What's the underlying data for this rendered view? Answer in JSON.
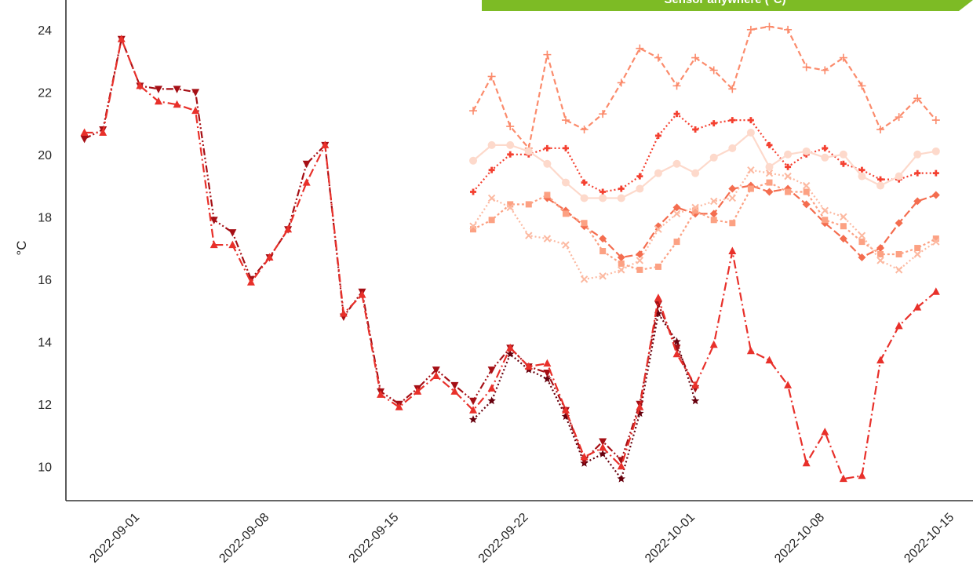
{
  "banner": {
    "text": "Sensor anywhere (°C)",
    "color": "#7dbb25"
  },
  "chart_data": {
    "type": "line",
    "title": "",
    "xlabel": "",
    "ylabel": "°C",
    "grid": false,
    "x_axis": {
      "type": "date",
      "range": [
        "2022-08-28",
        "2022-10-16"
      ],
      "ticks": [
        "2022-09-01",
        "2022-09-08",
        "2022-09-15",
        "2022-09-22",
        "2022-10-01",
        "2022-10-08",
        "2022-10-15"
      ]
    },
    "y_axis": {
      "range": [
        8.9,
        24.7
      ],
      "ticks": [
        10,
        12,
        14,
        16,
        18,
        20,
        22,
        24
      ]
    },
    "series": [
      {
        "color": "#67000d",
        "dash": "2,3",
        "marker": "star",
        "points": [
          [
            "2022-09-19",
            11.5
          ],
          [
            "2022-09-20",
            12.1
          ],
          [
            "2022-09-21",
            13.6
          ],
          [
            "2022-09-22",
            13.1
          ],
          [
            "2022-09-23",
            12.8
          ],
          [
            "2022-09-24",
            11.6
          ],
          [
            "2022-09-25",
            10.1
          ],
          [
            "2022-09-26",
            10.4
          ],
          [
            "2022-09-27",
            9.6
          ],
          [
            "2022-09-28",
            11.7
          ],
          [
            "2022-09-29",
            14.9
          ],
          [
            "2022-09-30",
            14.0
          ],
          [
            "2022-10-01",
            12.1
          ]
        ]
      },
      {
        "color": "#a50f15",
        "dash": "9,3,2,3,2,3",
        "marker": "triangle-down",
        "points": [
          [
            "2022-08-29",
            20.5
          ],
          [
            "2022-08-30",
            20.8
          ],
          [
            "2022-08-31",
            23.7
          ],
          [
            "2022-09-01",
            22.2
          ],
          [
            "2022-09-02",
            22.1
          ],
          [
            "2022-09-03",
            22.1
          ],
          [
            "2022-09-04",
            22.0
          ],
          [
            "2022-09-05",
            17.9
          ],
          [
            "2022-09-06",
            17.5
          ],
          [
            "2022-09-07",
            16.0
          ],
          [
            "2022-09-08",
            16.7
          ],
          [
            "2022-09-09",
            17.6
          ],
          [
            "2022-09-10",
            19.7
          ],
          [
            "2022-09-11",
            20.3
          ],
          [
            "2022-09-12",
            14.8
          ],
          [
            "2022-09-13",
            15.6
          ],
          [
            "2022-09-14",
            12.4
          ],
          [
            "2022-09-15",
            12.0
          ],
          [
            "2022-09-16",
            12.5
          ],
          [
            "2022-09-17",
            13.1
          ],
          [
            "2022-09-18",
            12.6
          ],
          [
            "2022-09-19",
            12.1
          ],
          [
            "2022-09-20",
            13.1
          ],
          [
            "2022-09-21",
            13.8
          ],
          [
            "2022-09-22",
            13.2
          ],
          [
            "2022-09-23",
            13.0
          ],
          [
            "2022-09-24",
            11.8
          ],
          [
            "2022-09-25",
            10.2
          ],
          [
            "2022-09-26",
            10.8
          ],
          [
            "2022-09-27",
            10.2
          ],
          [
            "2022-09-28",
            12.0
          ],
          [
            "2022-09-29",
            15.2
          ],
          [
            "2022-09-30",
            13.8
          ],
          [
            "2022-10-01",
            12.5
          ]
        ]
      },
      {
        "color": "#e8302a",
        "dash": "11,4,2,4",
        "marker": "triangle-up",
        "points": [
          [
            "2022-08-29",
            20.7
          ],
          [
            "2022-08-30",
            20.7
          ],
          [
            "2022-08-31",
            23.7
          ],
          [
            "2022-09-01",
            22.2
          ],
          [
            "2022-09-02",
            21.7
          ],
          [
            "2022-09-03",
            21.6
          ],
          [
            "2022-09-04",
            21.4
          ],
          [
            "2022-09-05",
            17.1
          ],
          [
            "2022-09-06",
            17.1
          ],
          [
            "2022-09-07",
            15.9
          ],
          [
            "2022-09-08",
            16.7
          ],
          [
            "2022-09-09",
            17.6
          ],
          [
            "2022-09-10",
            19.1
          ],
          [
            "2022-09-11",
            20.3
          ],
          [
            "2022-09-12",
            14.9
          ],
          [
            "2022-09-13",
            15.5
          ],
          [
            "2022-09-14",
            12.3
          ],
          [
            "2022-09-15",
            11.9
          ],
          [
            "2022-09-16",
            12.4
          ],
          [
            "2022-09-17",
            12.9
          ],
          [
            "2022-09-18",
            12.4
          ],
          [
            "2022-09-19",
            11.8
          ],
          [
            "2022-09-20",
            12.5
          ],
          [
            "2022-09-21",
            13.8
          ],
          [
            "2022-09-22",
            13.2
          ],
          [
            "2022-09-23",
            13.3
          ],
          [
            "2022-09-24",
            11.8
          ],
          [
            "2022-09-25",
            10.3
          ],
          [
            "2022-09-26",
            10.6
          ],
          [
            "2022-09-27",
            10.0
          ],
          [
            "2022-09-28",
            11.9
          ],
          [
            "2022-09-29",
            15.4
          ],
          [
            "2022-09-30",
            13.6
          ],
          [
            "2022-10-01",
            12.6
          ],
          [
            "2022-10-02",
            13.9
          ],
          [
            "2022-10-03",
            16.9
          ],
          [
            "2022-10-04",
            13.7
          ],
          [
            "2022-10-05",
            13.4
          ],
          [
            "2022-10-06",
            12.6
          ],
          [
            "2022-10-07",
            10.1
          ],
          [
            "2022-10-08",
            11.1
          ],
          [
            "2022-10-09",
            9.6
          ],
          [
            "2022-10-10",
            9.7
          ],
          [
            "2022-10-11",
            13.4
          ],
          [
            "2022-10-12",
            14.5
          ],
          [
            "2022-10-13",
            15.1
          ],
          [
            "2022-10-14",
            15.6
          ]
        ]
      },
      {
        "color": "#f44030",
        "dash": "2,3",
        "marker": "plus-bold",
        "points": [
          [
            "2022-09-19",
            18.8
          ],
          [
            "2022-09-20",
            19.5
          ],
          [
            "2022-09-21",
            20.0
          ],
          [
            "2022-09-22",
            20.0
          ],
          [
            "2022-09-23",
            20.2
          ],
          [
            "2022-09-24",
            20.2
          ],
          [
            "2022-09-25",
            19.1
          ],
          [
            "2022-09-26",
            18.8
          ],
          [
            "2022-09-27",
            18.9
          ],
          [
            "2022-09-28",
            19.3
          ],
          [
            "2022-09-29",
            20.6
          ],
          [
            "2022-09-30",
            21.3
          ],
          [
            "2022-10-01",
            20.8
          ],
          [
            "2022-10-02",
            21.0
          ],
          [
            "2022-10-03",
            21.1
          ],
          [
            "2022-10-04",
            21.1
          ],
          [
            "2022-10-05",
            20.3
          ],
          [
            "2022-10-06",
            19.6
          ],
          [
            "2022-10-07",
            20.0
          ],
          [
            "2022-10-08",
            20.2
          ],
          [
            "2022-10-09",
            19.7
          ],
          [
            "2022-10-10",
            19.5
          ],
          [
            "2022-10-11",
            19.2
          ],
          [
            "2022-10-12",
            19.2
          ],
          [
            "2022-10-13",
            19.4
          ],
          [
            "2022-10-14",
            19.4
          ]
        ]
      },
      {
        "color": "#f46d4f",
        "dash": "10,4",
        "marker": "diamond",
        "points": [
          [
            "2022-09-23",
            18.6
          ],
          [
            "2022-09-24",
            18.2
          ],
          [
            "2022-09-25",
            17.7
          ],
          [
            "2022-09-26",
            17.3
          ],
          [
            "2022-09-27",
            16.7
          ],
          [
            "2022-09-28",
            16.8
          ],
          [
            "2022-09-29",
            17.7
          ],
          [
            "2022-09-30",
            18.3
          ],
          [
            "2022-10-01",
            18.1
          ],
          [
            "2022-10-02",
            18.1
          ],
          [
            "2022-10-03",
            18.9
          ],
          [
            "2022-10-04",
            19.0
          ],
          [
            "2022-10-05",
            18.8
          ],
          [
            "2022-10-06",
            18.9
          ],
          [
            "2022-10-07",
            18.4
          ],
          [
            "2022-10-08",
            17.8
          ],
          [
            "2022-10-09",
            17.3
          ],
          [
            "2022-10-10",
            16.7
          ],
          [
            "2022-10-11",
            17.0
          ],
          [
            "2022-10-12",
            17.8
          ],
          [
            "2022-10-13",
            18.5
          ],
          [
            "2022-10-14",
            18.7
          ]
        ]
      },
      {
        "color": "#fb8b6c",
        "dash": "7,4",
        "marker": "plus",
        "points": [
          [
            "2022-09-19",
            21.4
          ],
          [
            "2022-09-20",
            22.5
          ],
          [
            "2022-09-21",
            20.9
          ],
          [
            "2022-09-22",
            20.2
          ],
          [
            "2022-09-23",
            23.2
          ],
          [
            "2022-09-24",
            21.1
          ],
          [
            "2022-09-25",
            20.8
          ],
          [
            "2022-09-26",
            21.3
          ],
          [
            "2022-09-27",
            22.3
          ],
          [
            "2022-09-28",
            23.4
          ],
          [
            "2022-09-29",
            23.1
          ],
          [
            "2022-09-30",
            22.2
          ],
          [
            "2022-10-01",
            23.1
          ],
          [
            "2022-10-02",
            22.7
          ],
          [
            "2022-10-03",
            22.1
          ],
          [
            "2022-10-04",
            24.0
          ],
          [
            "2022-10-05",
            24.1
          ],
          [
            "2022-10-06",
            24.0
          ],
          [
            "2022-10-07",
            22.8
          ],
          [
            "2022-10-08",
            22.7
          ],
          [
            "2022-10-09",
            23.1
          ],
          [
            "2022-10-10",
            22.2
          ],
          [
            "2022-10-11",
            20.8
          ],
          [
            "2022-10-12",
            21.2
          ],
          [
            "2022-10-13",
            21.8
          ],
          [
            "2022-10-14",
            21.1
          ]
        ]
      },
      {
        "color": "#fca183",
        "dash": "3,3",
        "marker": "square",
        "points": [
          [
            "2022-09-19",
            17.6
          ],
          [
            "2022-09-20",
            17.9
          ],
          [
            "2022-09-21",
            18.4
          ],
          [
            "2022-09-22",
            18.4
          ],
          [
            "2022-09-23",
            18.7
          ],
          [
            "2022-09-24",
            18.1
          ],
          [
            "2022-09-25",
            17.8
          ],
          [
            "2022-09-26",
            16.9
          ],
          [
            "2022-09-27",
            16.5
          ],
          [
            "2022-09-28",
            16.3
          ],
          [
            "2022-09-29",
            16.4
          ],
          [
            "2022-09-30",
            17.2
          ],
          [
            "2022-10-01",
            18.2
          ],
          [
            "2022-10-02",
            17.9
          ],
          [
            "2022-10-03",
            17.8
          ],
          [
            "2022-10-04",
            18.9
          ],
          [
            "2022-10-05",
            19.1
          ],
          [
            "2022-10-06",
            18.8
          ],
          [
            "2022-10-07",
            18.8
          ],
          [
            "2022-10-08",
            17.9
          ],
          [
            "2022-10-09",
            17.7
          ],
          [
            "2022-10-10",
            17.2
          ],
          [
            "2022-10-11",
            16.8
          ],
          [
            "2022-10-12",
            16.8
          ],
          [
            "2022-10-13",
            17.0
          ],
          [
            "2022-10-14",
            17.3
          ]
        ]
      },
      {
        "color": "#fcb9a1",
        "dash": "2,3",
        "marker": "x",
        "points": [
          [
            "2022-09-19",
            17.7
          ],
          [
            "2022-09-20",
            18.6
          ],
          [
            "2022-09-21",
            18.3
          ],
          [
            "2022-09-22",
            17.4
          ],
          [
            "2022-09-23",
            17.3
          ],
          [
            "2022-09-24",
            17.1
          ],
          [
            "2022-09-25",
            16.0
          ],
          [
            "2022-09-26",
            16.1
          ],
          [
            "2022-09-27",
            16.3
          ],
          [
            "2022-09-28",
            16.6
          ],
          [
            "2022-09-29",
            17.6
          ],
          [
            "2022-09-30",
            18.1
          ],
          [
            "2022-10-01",
            18.3
          ],
          [
            "2022-10-02",
            18.5
          ],
          [
            "2022-10-03",
            18.6
          ],
          [
            "2022-10-04",
            19.5
          ],
          [
            "2022-10-05",
            19.4
          ],
          [
            "2022-10-06",
            19.3
          ],
          [
            "2022-10-07",
            19.0
          ],
          [
            "2022-10-08",
            18.2
          ],
          [
            "2022-10-09",
            18.0
          ],
          [
            "2022-10-10",
            17.4
          ],
          [
            "2022-10-11",
            16.6
          ],
          [
            "2022-10-12",
            16.3
          ],
          [
            "2022-10-13",
            16.8
          ],
          [
            "2022-10-14",
            17.2
          ]
        ]
      },
      {
        "color": "#fdd9cb",
        "dash": "",
        "marker": "circle",
        "points": [
          [
            "2022-09-19",
            19.8
          ],
          [
            "2022-09-20",
            20.3
          ],
          [
            "2022-09-21",
            20.3
          ],
          [
            "2022-09-22",
            20.1
          ],
          [
            "2022-09-23",
            19.7
          ],
          [
            "2022-09-24",
            19.1
          ],
          [
            "2022-09-25",
            18.6
          ],
          [
            "2022-09-26",
            18.6
          ],
          [
            "2022-09-27",
            18.6
          ],
          [
            "2022-09-28",
            18.9
          ],
          [
            "2022-09-29",
            19.4
          ],
          [
            "2022-09-30",
            19.7
          ],
          [
            "2022-10-01",
            19.4
          ],
          [
            "2022-10-02",
            19.9
          ],
          [
            "2022-10-03",
            20.2
          ],
          [
            "2022-10-04",
            20.7
          ],
          [
            "2022-10-05",
            19.6
          ],
          [
            "2022-10-06",
            20.0
          ],
          [
            "2022-10-07",
            20.1
          ],
          [
            "2022-10-08",
            19.9
          ],
          [
            "2022-10-09",
            20.0
          ],
          [
            "2022-10-10",
            19.3
          ],
          [
            "2022-10-11",
            19.0
          ],
          [
            "2022-10-12",
            19.3
          ],
          [
            "2022-10-13",
            20.0
          ],
          [
            "2022-10-14",
            20.1
          ]
        ]
      }
    ]
  }
}
